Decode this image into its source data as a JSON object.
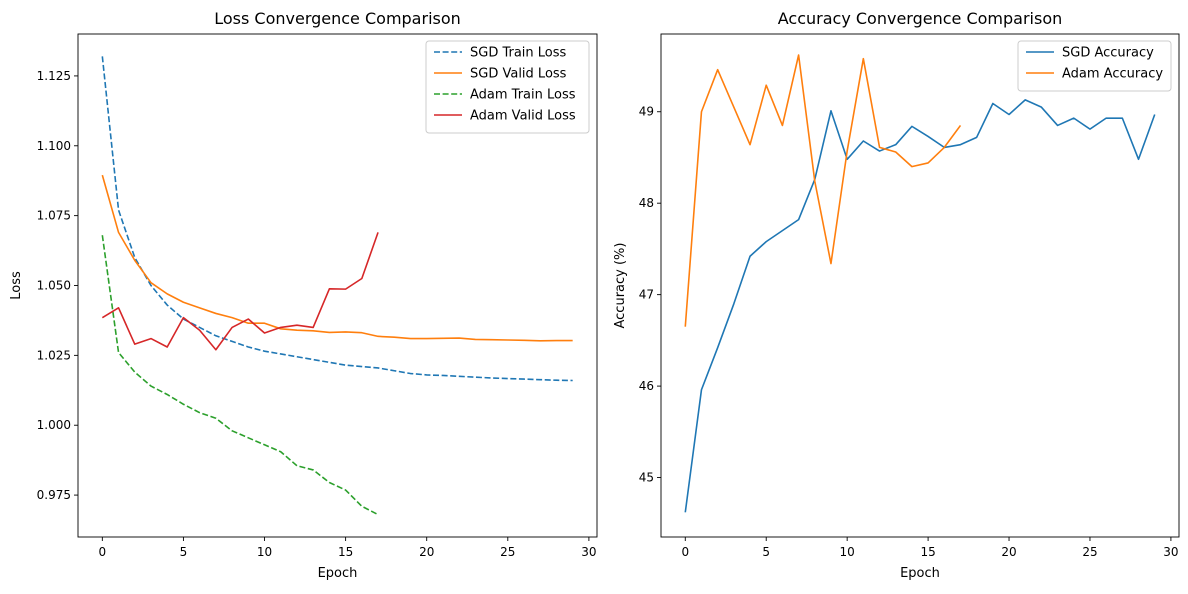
{
  "chart_data": [
    {
      "type": "line",
      "title": "Loss Convergence Comparison",
      "xlabel": "Epoch",
      "ylabel": "Loss",
      "xlim": [
        -1.5,
        30.5
      ],
      "ylim": [
        0.96,
        1.14
      ],
      "xticks": [
        0,
        5,
        10,
        15,
        20,
        25,
        30
      ],
      "yticks": [
        0.975,
        1.0,
        1.025,
        1.05,
        1.075,
        1.1,
        1.125
      ],
      "ytick_labels": [
        "0.975",
        "1.000",
        "1.025",
        "1.050",
        "1.075",
        "1.100",
        "1.125"
      ],
      "legend_position": "top-right",
      "grid": false,
      "series": [
        {
          "name": "SGD Train Loss",
          "color": "#1f77b4",
          "dash": "dashed",
          "x": [
            0,
            1,
            2,
            3,
            4,
            5,
            6,
            7,
            8,
            9,
            10,
            11,
            12,
            13,
            14,
            15,
            16,
            17,
            18,
            19,
            20,
            21,
            22,
            23,
            24,
            25,
            26,
            27,
            28,
            29
          ],
          "values": [
            1.132,
            1.077,
            1.06,
            1.05,
            1.043,
            1.038,
            1.035,
            1.032,
            1.03,
            1.028,
            1.0265,
            1.0255,
            1.0245,
            1.0235,
            1.0225,
            1.0215,
            1.021,
            1.0205,
            1.0195,
            1.0185,
            1.018,
            1.0178,
            1.0175,
            1.0172,
            1.0169,
            1.0167,
            1.0165,
            1.0163,
            1.0161,
            1.016
          ]
        },
        {
          "name": "SGD Valid Loss",
          "color": "#ff7f0e",
          "dash": "solid",
          "x": [
            0,
            1,
            2,
            3,
            4,
            5,
            6,
            7,
            8,
            9,
            10,
            11,
            12,
            13,
            14,
            15,
            16,
            17,
            18,
            19,
            20,
            21,
            22,
            23,
            24,
            25,
            26,
            27,
            28,
            29
          ],
          "values": [
            1.0895,
            1.069,
            1.059,
            1.051,
            1.047,
            1.044,
            1.042,
            1.04,
            1.0385,
            1.0365,
            1.0365,
            1.0345,
            1.034,
            1.0338,
            1.0332,
            1.0334,
            1.0331,
            1.0318,
            1.0315,
            1.031,
            1.031,
            1.0311,
            1.0312,
            1.0307,
            1.0306,
            1.0305,
            1.0304,
            1.0302,
            1.0303,
            1.0303
          ]
        },
        {
          "name": "Adam Train Loss",
          "color": "#2ca02c",
          "dash": "dashed",
          "x": [
            0,
            1,
            2,
            3,
            4,
            5,
            6,
            7,
            8,
            9,
            10,
            11,
            12,
            13,
            14,
            15,
            16,
            17
          ],
          "values": [
            1.068,
            1.026,
            1.019,
            1.014,
            1.011,
            1.0075,
            1.0045,
            1.0025,
            0.998,
            0.9955,
            0.993,
            0.9905,
            0.9855,
            0.984,
            0.9795,
            0.9768,
            0.971,
            0.968
          ]
        },
        {
          "name": "Adam Valid Loss",
          "color": "#d62728",
          "dash": "solid",
          "x": [
            0,
            1,
            2,
            3,
            4,
            5,
            6,
            7,
            8,
            9,
            10,
            11,
            12,
            13,
            14,
            15,
            16,
            17
          ],
          "values": [
            1.0385,
            1.042,
            1.029,
            1.031,
            1.028,
            1.0385,
            1.034,
            1.027,
            1.035,
            1.038,
            1.033,
            1.035,
            1.0358,
            1.035,
            1.0488,
            1.0487,
            1.0525,
            1.069
          ]
        }
      ]
    },
    {
      "type": "line",
      "title": "Accuracy Convergence Comparison",
      "xlabel": "Epoch",
      "ylabel": "Accuracy (%)",
      "xlim": [
        -1.5,
        30.5
      ],
      "ylim": [
        44.35,
        49.85
      ],
      "xticks": [
        0,
        5,
        10,
        15,
        20,
        25,
        30
      ],
      "yticks": [
        45,
        46,
        47,
        48,
        49
      ],
      "ytick_labels": [
        "45",
        "46",
        "47",
        "48",
        "49"
      ],
      "legend_position": "top-right",
      "grid": false,
      "series": [
        {
          "name": "SGD Accuracy",
          "color": "#1f77b4",
          "dash": "solid",
          "x": [
            0,
            1,
            2,
            3,
            4,
            5,
            6,
            7,
            8,
            9,
            10,
            11,
            12,
            13,
            14,
            15,
            16,
            17,
            18,
            19,
            20,
            21,
            22,
            23,
            24,
            25,
            26,
            27,
            28,
            29
          ],
          "values": [
            44.62,
            45.96,
            46.42,
            46.9,
            47.42,
            47.58,
            47.7,
            47.82,
            48.26,
            49.01,
            48.48,
            48.68,
            48.57,
            48.64,
            48.84,
            48.73,
            48.61,
            48.64,
            48.72,
            49.09,
            48.97,
            49.13,
            49.05,
            48.85,
            48.93,
            48.81,
            48.93,
            48.93,
            48.48,
            48.97
          ]
        },
        {
          "name": "Adam Accuracy",
          "color": "#ff7f0e",
          "dash": "solid",
          "x": [
            0,
            1,
            2,
            3,
            4,
            5,
            6,
            7,
            8,
            9,
            10,
            11,
            12,
            13,
            14,
            15,
            16,
            17
          ],
          "values": [
            46.65,
            49.0,
            49.46,
            49.05,
            48.64,
            49.29,
            48.85,
            49.62,
            48.24,
            47.34,
            48.57,
            49.58,
            48.61,
            48.56,
            48.4,
            48.44,
            48.61,
            48.85
          ]
        }
      ]
    }
  ]
}
